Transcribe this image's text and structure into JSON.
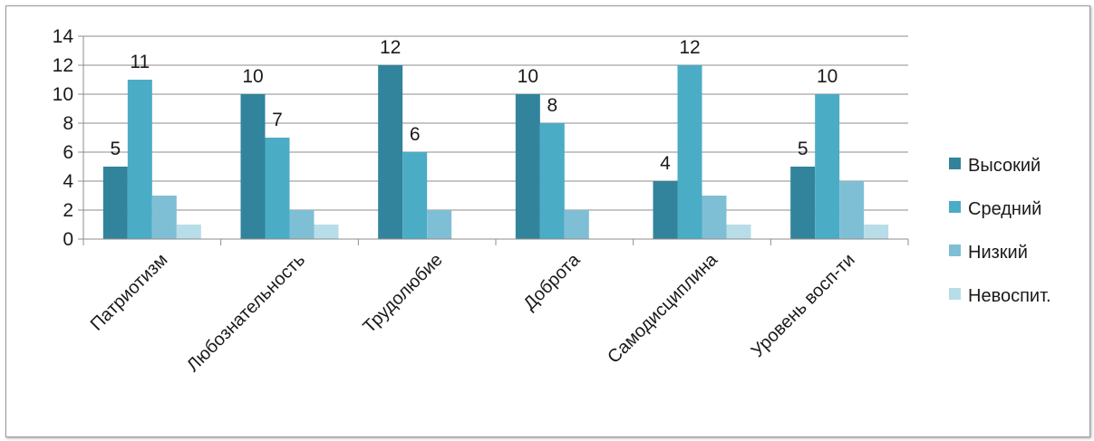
{
  "chart_data": {
    "type": "bar",
    "title": "",
    "xlabel": "",
    "ylabel": "",
    "ylim": [
      0,
      14
    ],
    "yticks": [
      0,
      2,
      4,
      6,
      8,
      10,
      12,
      14
    ],
    "grid": true,
    "legend_position": "right",
    "categories": [
      "Патриотизм",
      "Любознательность",
      "Трудолюбие",
      "Доброта",
      "Самодисциплина",
      "Уровень восп-ти"
    ],
    "series": [
      {
        "name": "Высокий",
        "color": "#31849b",
        "values": [
          5,
          10,
          12,
          10,
          4,
          5
        ],
        "labels_shown": true
      },
      {
        "name": "Средний",
        "color": "#4bacc6",
        "values": [
          11,
          7,
          6,
          8,
          12,
          10
        ],
        "labels_shown": true
      },
      {
        "name": "Низкий",
        "color": "#7fbfd5",
        "values": [
          3,
          2,
          2,
          2,
          3,
          4
        ],
        "labels_shown": false
      },
      {
        "name": "Невоспит.",
        "color": "#b7dde8",
        "values": [
          1,
          1,
          0,
          0,
          1,
          1
        ],
        "labels_shown": false
      }
    ]
  }
}
